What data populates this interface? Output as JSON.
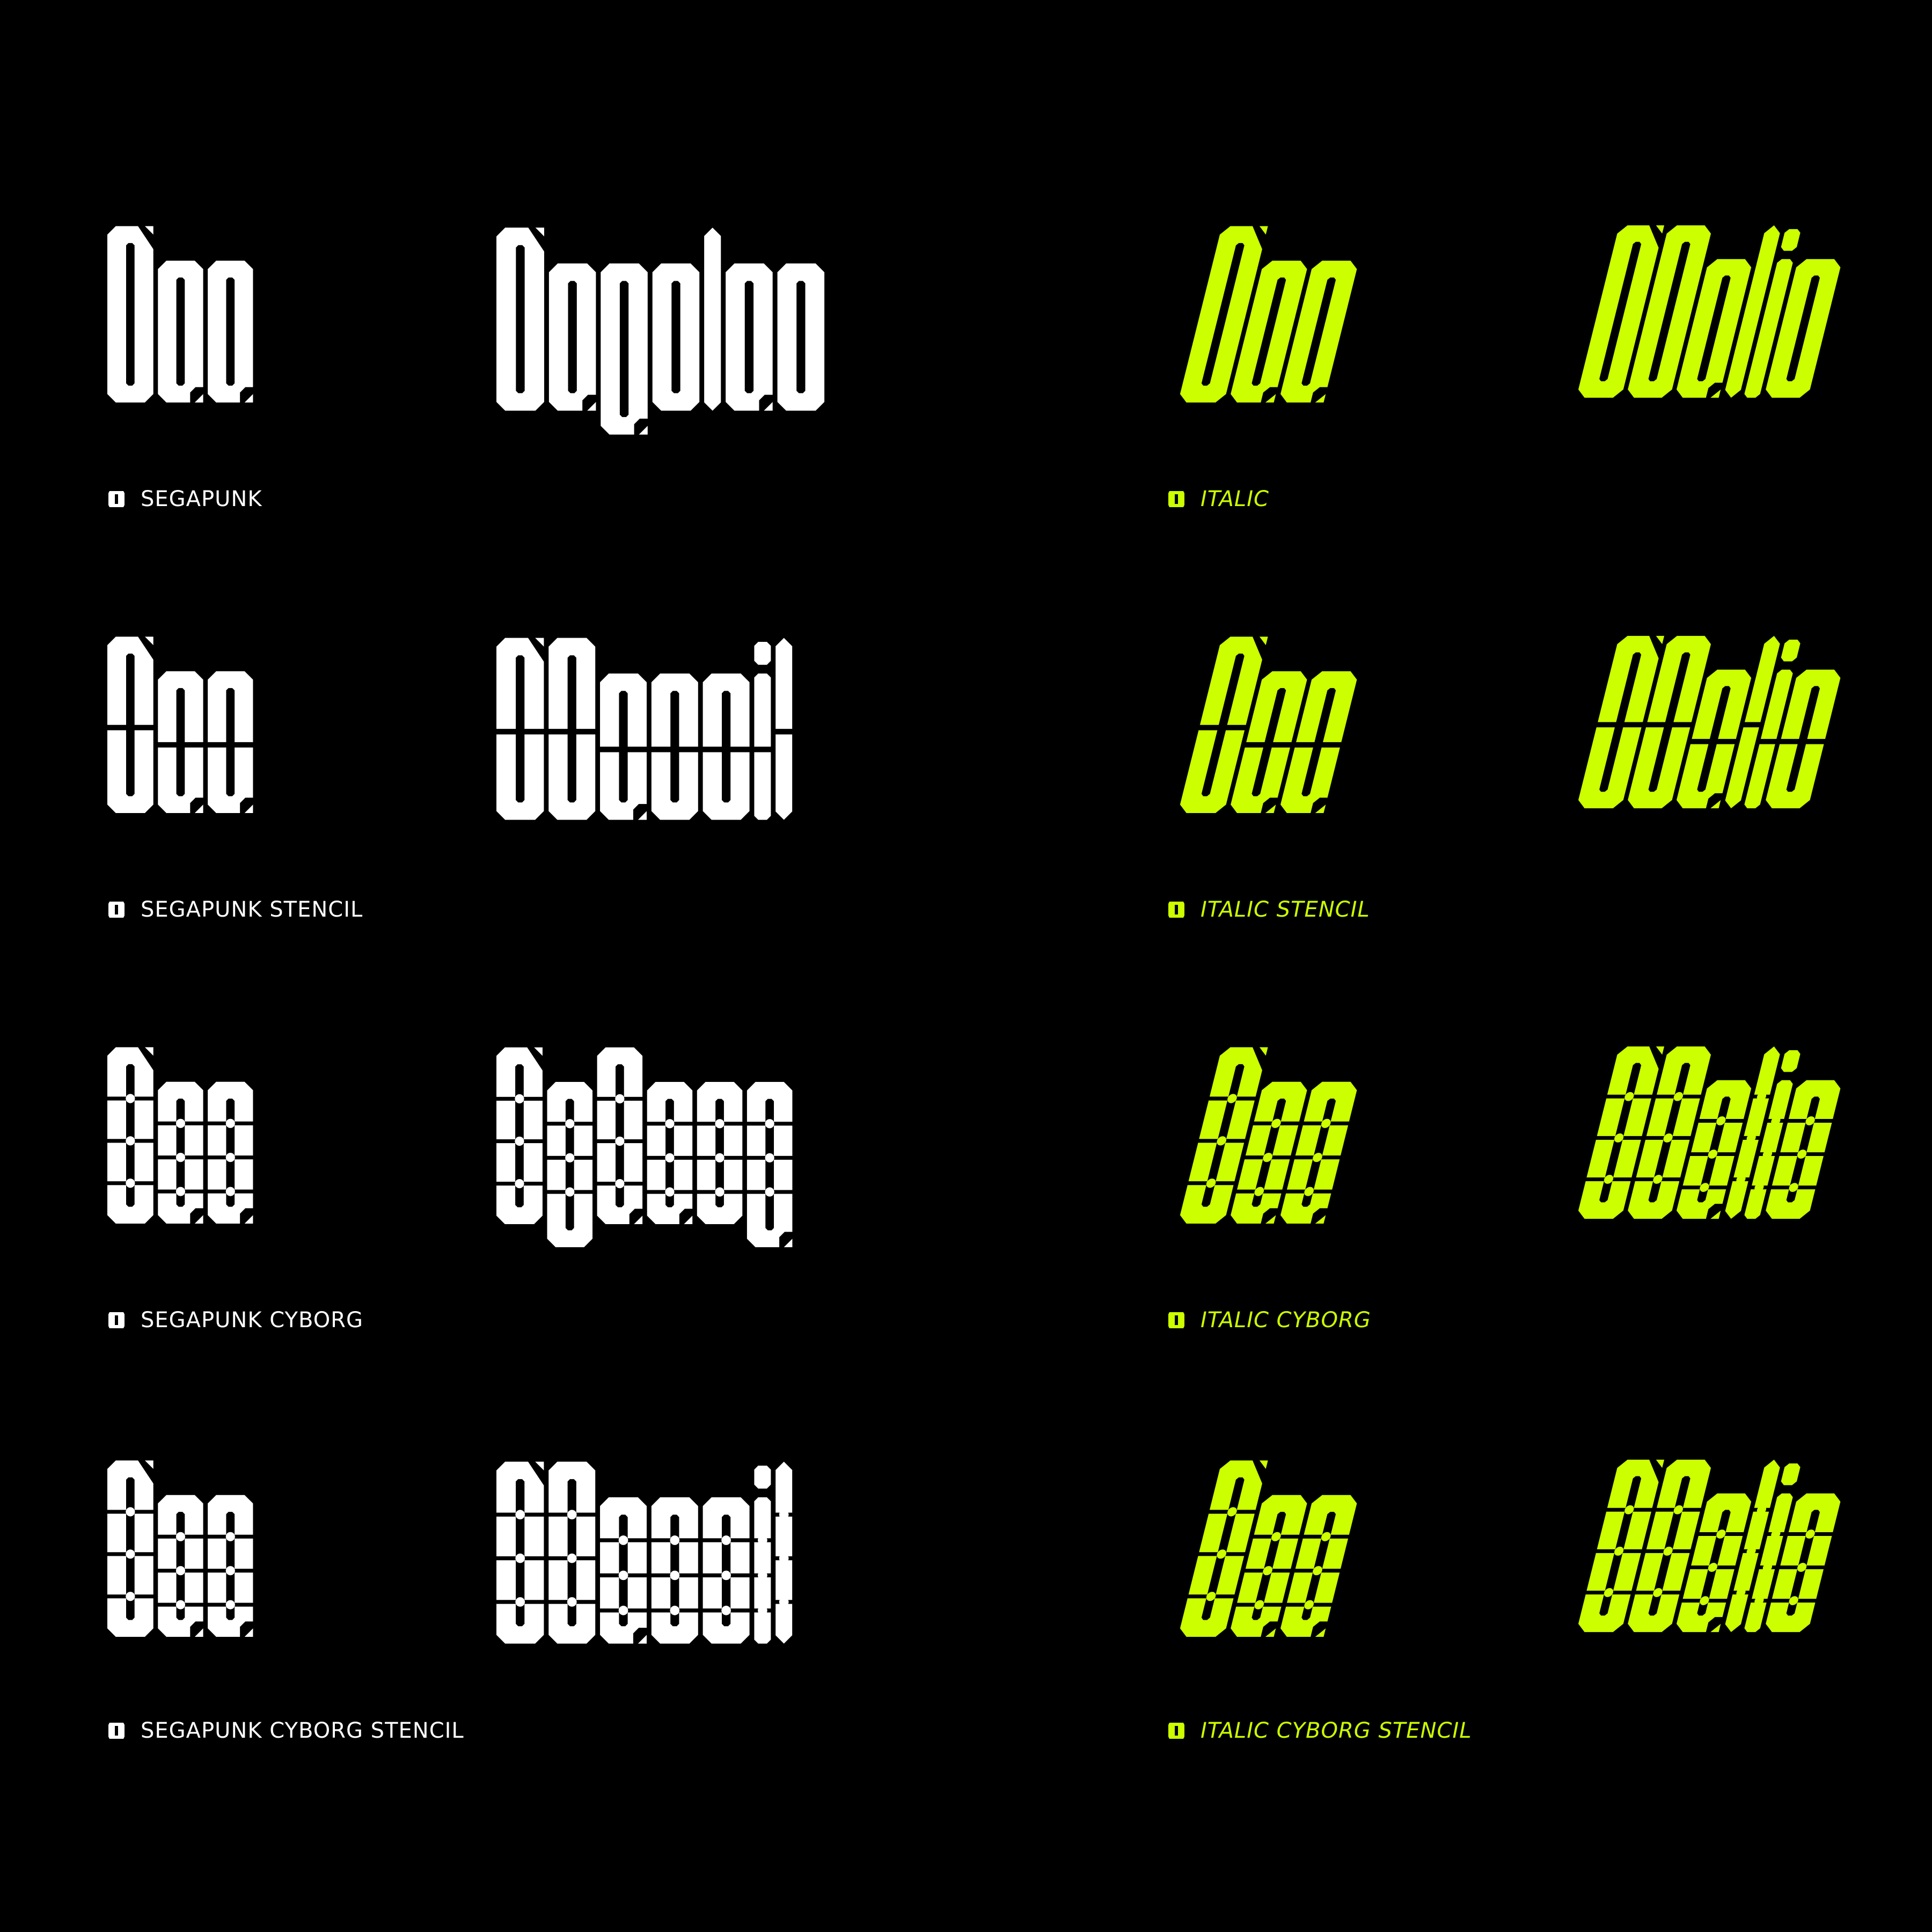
{
  "colors": {
    "background": "#000000",
    "white": "#ffffff",
    "accent": "#ccff00"
  },
  "bullet_icon": "segapunk-bullet-icon",
  "samples": [
    {
      "style_id": "regular",
      "glyphs": "Aao",
      "word": "Regular",
      "caption": "SEGAPUNK",
      "color": "white",
      "italic": false
    },
    {
      "style_id": "stencil",
      "glyphs": "Aao",
      "word": "Stencil",
      "caption": "SEGAPUNK STENCIL",
      "color": "white",
      "italic": false
    },
    {
      "style_id": "cyborg",
      "glyphs": "Aao",
      "word": "Cyborg",
      "caption": "SEGAPUNK CYBORG",
      "color": "white",
      "italic": false
    },
    {
      "style_id": "cyborg-stencil",
      "glyphs": "Aao",
      "word": "Stencil",
      "caption": "SEGAPUNK CYBORG STENCIL",
      "color": "white",
      "italic": false
    },
    {
      "style_id": "italic",
      "glyphs": "Aao",
      "word": "Italic",
      "caption": "ITALIC",
      "color": "accent",
      "italic": true
    },
    {
      "style_id": "italic-stencil",
      "glyphs": "Aao",
      "word": "Italic",
      "caption": "ITALIC STENCIL",
      "color": "accent",
      "italic": true
    },
    {
      "style_id": "italic-cyborg",
      "glyphs": "Aao",
      "word": "Italic",
      "caption": "ITALIC CYBORG",
      "color": "accent",
      "italic": true
    },
    {
      "style_id": "italic-cyborg-stencil",
      "glyphs": "Aao",
      "word": "Italic",
      "caption": "ITALIC CYBORG STENCIL",
      "color": "accent",
      "italic": true
    }
  ]
}
